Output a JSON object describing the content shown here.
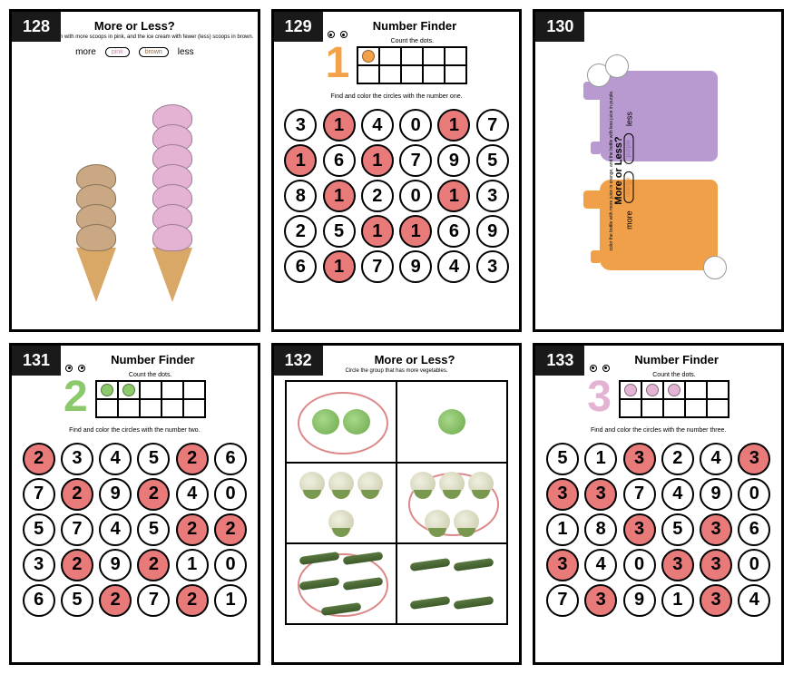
{
  "cards": [
    {
      "page": "128",
      "title": "More or Less?",
      "subtitle": "Color the ice cream with more scoops in pink,\nand the ice cream with fewer (less) scoops in brown.",
      "more_label": "more",
      "less_label": "less",
      "pencil_pink": "pink",
      "pencil_brown": "brown",
      "icecream_colors": {
        "brown": "#c9a883",
        "pink": "#e4b3d4"
      },
      "icecream_left_scoops": 4,
      "icecream_right_scoops": 7
    },
    {
      "page": "129",
      "title": "Number Finder",
      "tf_label": "Count the dots.",
      "dot_color": "#f3a24a",
      "char_color": "#f3a24a",
      "char_digit": "1",
      "dots": 1,
      "instr": "Find and color the circles with the number one.",
      "highlight_color": "#e87a7a",
      "grid": [
        [
          "3",
          "1",
          "4",
          "0",
          "1",
          "7"
        ],
        [
          "1",
          "6",
          "1",
          "7",
          "9",
          "5"
        ],
        [
          "8",
          "1",
          "2",
          "0",
          "1",
          "3"
        ],
        [
          "2",
          "5",
          "1",
          "1",
          "6",
          "9"
        ],
        [
          "6",
          "1",
          "7",
          "9",
          "4",
          "3"
        ]
      ],
      "target": "1"
    },
    {
      "page": "130",
      "title": "More or Less?",
      "subtitle": "color the bottle with more juice in orange, and the bottle with less juice in purple.",
      "more_label": "more",
      "less_label": "less",
      "pencil_orange": "orange",
      "pencil_purple": "purple",
      "jug_colors": {
        "orange": "#f0a048",
        "purple": "#b89ad0"
      }
    },
    {
      "page": "131",
      "title": "Number Finder",
      "tf_label": "Count the dots.",
      "dot_color": "#8bc96b",
      "char_color": "#8bc96b",
      "char_digit": "2",
      "dots": 2,
      "instr": "Find and color the circles with the number two.",
      "highlight_color": "#e87a7a",
      "grid": [
        [
          "2",
          "3",
          "4",
          "5",
          "2",
          "6"
        ],
        [
          "7",
          "2",
          "9",
          "2",
          "4",
          "0"
        ],
        [
          "5",
          "7",
          "4",
          "5",
          "2",
          "2"
        ],
        [
          "3",
          "2",
          "9",
          "2",
          "1",
          "0"
        ],
        [
          "6",
          "5",
          "2",
          "7",
          "2",
          "1"
        ]
      ],
      "target": "2"
    },
    {
      "page": "132",
      "title": "More or Less?",
      "subtitle": "Circle the group that has more vegetables.",
      "rows": [
        {
          "left": {
            "type": "lettuce",
            "count": 2,
            "circled": true
          },
          "right": {
            "type": "lettuce",
            "count": 1,
            "circled": false
          }
        },
        {
          "left": {
            "type": "cauli",
            "count": 4,
            "circled": false
          },
          "right": {
            "type": "cauli",
            "count": 5,
            "circled": true
          }
        },
        {
          "left": {
            "type": "zuc",
            "count": 5,
            "circled": true
          },
          "right": {
            "type": "zuc",
            "count": 4,
            "circled": false
          }
        }
      ]
    },
    {
      "page": "133",
      "title": "Number Finder",
      "tf_label": "Count the dots.",
      "dot_color": "#e4b3d4",
      "char_color": "#e4b3d4",
      "char_digit": "3",
      "dots": 3,
      "instr": "Find and color the circles with the number three.",
      "highlight_color": "#e87a7a",
      "grid": [
        [
          "5",
          "1",
          "3",
          "2",
          "4",
          "3"
        ],
        [
          "3",
          "3",
          "7",
          "4",
          "9",
          "0"
        ],
        [
          "1",
          "8",
          "3",
          "5",
          "3",
          "6"
        ],
        [
          "3",
          "4",
          "0",
          "3",
          "3",
          "0"
        ],
        [
          "7",
          "3",
          "9",
          "1",
          "3",
          "4"
        ]
      ],
      "target": "3"
    }
  ]
}
